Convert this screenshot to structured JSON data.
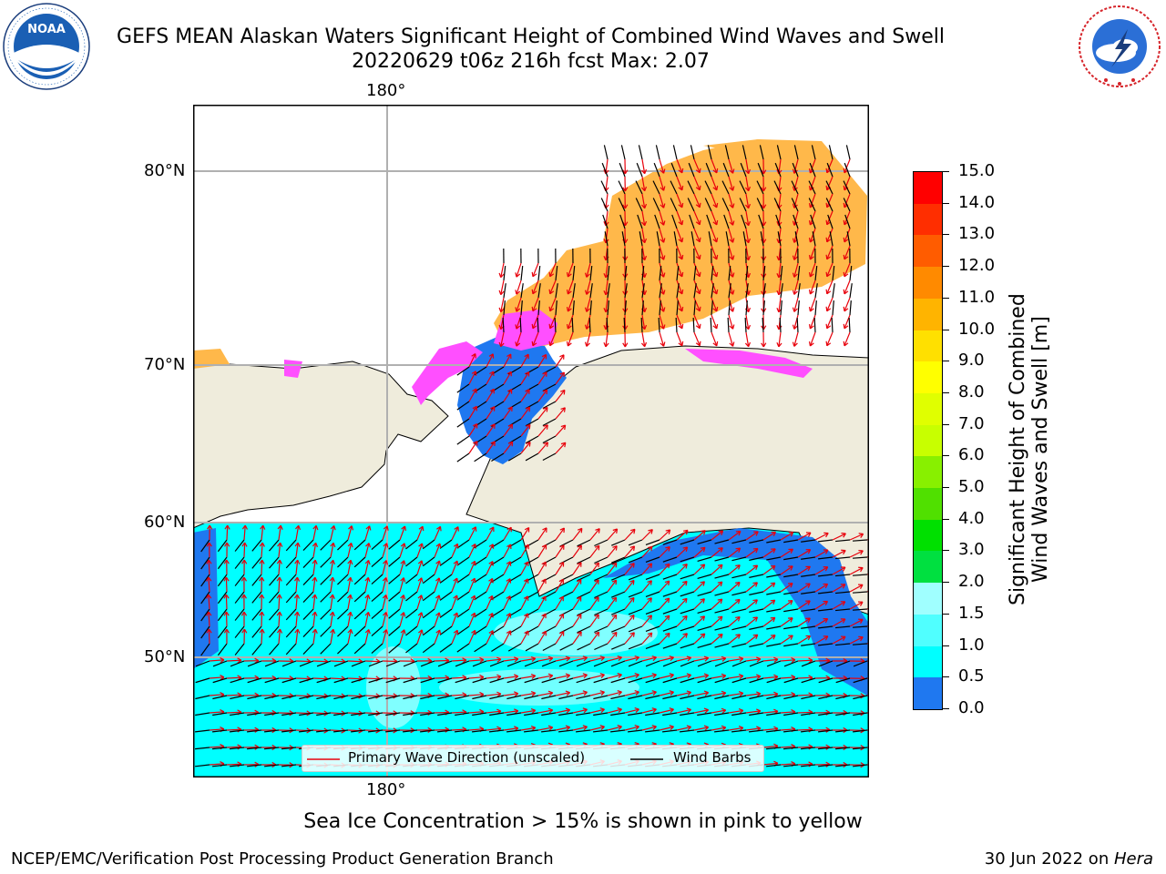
{
  "title": {
    "line1": "GEFS MEAN Alaskan Waters Significant Height of Combined Wind Waves and Swell",
    "line2": "20220629 t06z 216h fcst   Max: 2.07"
  },
  "logos": {
    "left": {
      "name": "noaa-logo",
      "text": "NOAA",
      "ring_text": "NATIONAL OCEANIC AND ATMOSPHERIC ADMINISTRATION · U.S. DEPARTMENT OF COMMERCE",
      "color": "#1a5fb4"
    },
    "right": {
      "name": "nws-logo",
      "ring_text": "NATIONAL WEATHER SERVICE",
      "color": "#d6242a"
    }
  },
  "map": {
    "lon_labels": {
      "top": "180°",
      "bottom": "180°"
    },
    "lat_labels": [
      "80°N",
      "70°N",
      "60°N",
      "50°N"
    ],
    "colors": {
      "land": "#efecdc",
      "ocean_low": "#00ffff",
      "ocean_mid": "#1f78f0",
      "ice_pink": "#ff4fff",
      "ice_orange": "#ffb84a",
      "grid": "#b0b0b0"
    }
  },
  "legend": {
    "wave_label": "Primary Wave Direction (unscaled)",
    "wind_label": "Wind Barbs",
    "wave_color": "#e8000b",
    "wind_color": "#000000"
  },
  "colorbar": {
    "title_line1": "Significant Height of Combined",
    "title_line2": "Wind Waves and Swell [m]",
    "ticks": [
      "15.0",
      "14.0",
      "13.0",
      "12.0",
      "11.0",
      "10.0",
      "9.0",
      "8.0",
      "7.0",
      "6.0",
      "5.0",
      "4.0",
      "3.0",
      "2.0",
      "1.5",
      "1.0",
      "0.5",
      "0.0"
    ],
    "colors": [
      "#ff0000",
      "#ff2e00",
      "#ff5c00",
      "#ff8a00",
      "#ffb400",
      "#ffe000",
      "#ffff00",
      "#e0ff00",
      "#c8ff00",
      "#88f000",
      "#50e000",
      "#00e000",
      "#00e040",
      "#50ff90",
      "#a0ffff",
      "#50ffff",
      "#00ffff",
      "#1f78f0",
      "#0000ff"
    ]
  },
  "note": "Sea Ice Concentration > 15% is shown in pink to yellow",
  "footer": {
    "left": "NCEP/EMC/Verification Post Processing Product Generation Branch",
    "right_prefix": "30 Jun 2022 on ",
    "right_host": "Hera"
  }
}
